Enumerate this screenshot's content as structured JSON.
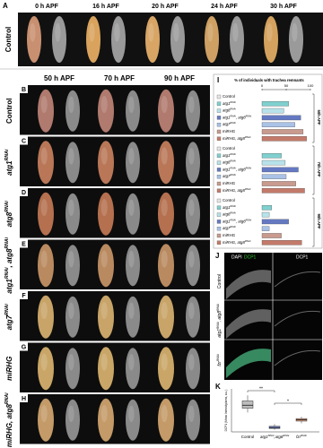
{
  "panel_a": {
    "label": "A",
    "row_label": "Control",
    "columns": [
      "0 h APF",
      "16 h APF",
      "20 h APF",
      "24 h APF",
      "30 h APF"
    ]
  },
  "panel_bh": {
    "columns": [
      "50 h APF",
      "70 h APF",
      "90 h APF"
    ],
    "rows": [
      {
        "label": "B",
        "name": [
          {
            "text": "Control"
          }
        ]
      },
      {
        "label": "C",
        "name": [
          {
            "text": "atg1"
          },
          {
            "sup": "RNAi"
          }
        ]
      },
      {
        "label": "D",
        "name": [
          {
            "text": "atg8"
          },
          {
            "sup": "RNAi"
          }
        ]
      },
      {
        "label": "E",
        "name": [
          {
            "text": "atg1"
          },
          {
            "sup": "RNAi"
          },
          {
            "text": ", atg8"
          },
          {
            "sup": "RNAi"
          }
        ]
      },
      {
        "label": "F",
        "name": [
          {
            "text": "atg7"
          },
          {
            "sup": "RNAi"
          }
        ]
      },
      {
        "label": "G",
        "name": [
          {
            "text": "miRHG"
          }
        ]
      },
      {
        "label": "H",
        "name": [
          {
            "text": "miRHG, atg8"
          },
          {
            "sup": "RNAi"
          }
        ]
      }
    ]
  },
  "panel_i": {
    "label": "I",
    "title": "% of individuals with trachea remnants",
    "xlim": [
      0,
      100
    ],
    "xticks": [
      0,
      50,
      100
    ],
    "legend": [
      [
        {
          "text": "Control"
        }
      ],
      [
        {
          "text": "atg1"
        },
        {
          "sup": "RNAi"
        }
      ],
      [
        {
          "text": "atg8"
        },
        {
          "sup": "RNAi"
        }
      ],
      [
        {
          "text": "atg1"
        },
        {
          "sup": "RNAi"
        },
        {
          "text": ", atg8"
        },
        {
          "sup": "RNAi"
        }
      ],
      [
        {
          "text": "atg7"
        },
        {
          "sup": "RNAi"
        }
      ],
      [
        {
          "text": "miRHG"
        }
      ],
      [
        {
          "text": "miRHG, atg8"
        },
        {
          "sup": "RNAi"
        }
      ]
    ],
    "colors": [
      "#e6e6e6",
      "#7fd0cf",
      "#b7e2ea",
      "#6479c2",
      "#a9c2e6",
      "#c89b8e",
      "#c47a6a"
    ],
    "groups": [
      {
        "name": "50h APF",
        "values": [
          0,
          55,
          45,
          80,
          68,
          85,
          92
        ]
      },
      {
        "name": "70h APF",
        "values": [
          0,
          40,
          48,
          75,
          50,
          70,
          88
        ]
      },
      {
        "name": "90h APF",
        "values": [
          0,
          20,
          15,
          55,
          15,
          40,
          82
        ]
      }
    ]
  },
  "panel_j": {
    "label": "J",
    "headers": [
      "DAPI",
      "DCP1",
      "DCP1"
    ],
    "rows": [
      [
        {
          "text": "Control"
        }
      ],
      [
        {
          "text": "atg1"
        },
        {
          "sup": "RNAi"
        },
        {
          "text": ", atg8"
        },
        {
          "sup": "RNAi"
        }
      ],
      [
        {
          "text": "fzr"
        },
        {
          "sup": "RNAi"
        }
      ]
    ]
  },
  "panel_k": {
    "label": "K",
    "type": "box",
    "ylabel": "DCP1 (Mean Intensity/area, a.u.)",
    "categories": [
      [
        {
          "text": "Control"
        }
      ],
      [
        {
          "text": "atg1"
        },
        {
          "sup": "RNAi"
        },
        {
          "text": ",atg8"
        },
        {
          "sup": "RNAi"
        }
      ],
      [
        {
          "text": "fzr"
        },
        {
          "sup": "RNAi"
        }
      ]
    ],
    "colors": [
      "#bdbdbd",
      "#7d8fd0",
      "#e2a487"
    ],
    "boxes": [
      {
        "min": 0.45,
        "q1": 0.55,
        "median": 0.62,
        "q3": 0.72,
        "max": 0.85
      },
      {
        "min": 0.05,
        "q1": 0.08,
        "median": 0.1,
        "q3": 0.13,
        "max": 0.18
      },
      {
        "min": 0.2,
        "q1": 0.25,
        "median": 0.28,
        "q3": 0.31,
        "max": 0.35
      }
    ],
    "ylim": [
      0,
      1
    ],
    "significance": [
      "**",
      "*"
    ]
  }
}
